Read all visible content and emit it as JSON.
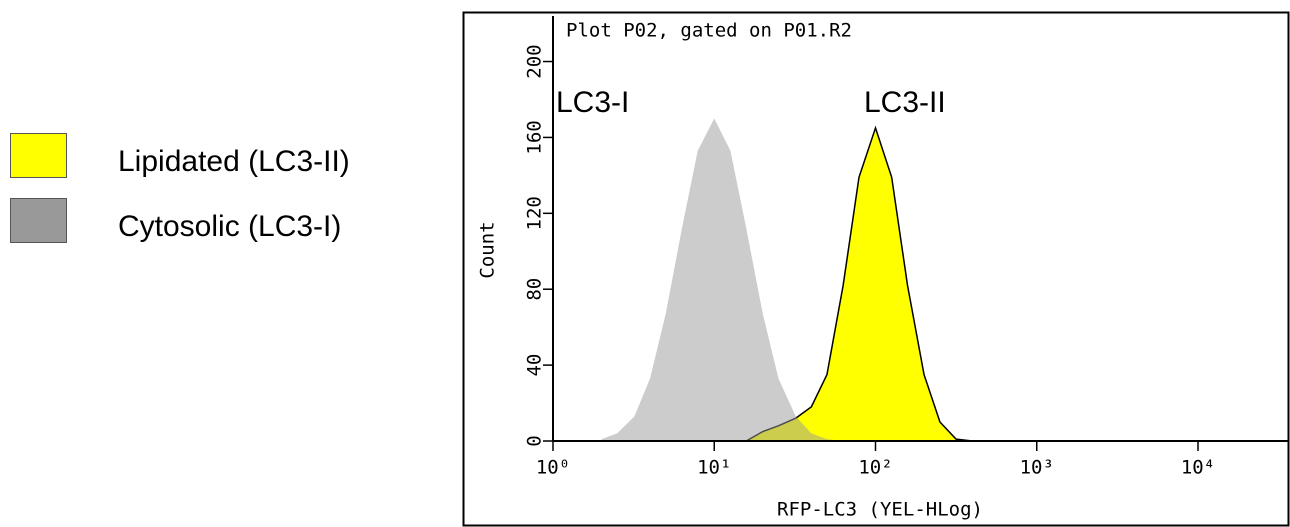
{
  "chart_data": {
    "type": "area",
    "title": "Plot P02, gated on P01.R2",
    "x_label": "RFP-LC3 (YEL-HLog)",
    "y_label": "Count",
    "annotations": [
      "LC3-I",
      "LC3-II"
    ],
    "xlog": true,
    "legend": "left",
    "xlim": [
      1,
      10000
    ],
    "xticks": [
      {
        "value": 1,
        "label": "10⁰"
      },
      {
        "value": 10,
        "label": "10¹"
      },
      {
        "value": 100,
        "label": "10²"
      },
      {
        "value": 1000,
        "label": "10³"
      },
      {
        "value": 10000,
        "label": "10⁴"
      }
    ],
    "ylim": [
      0,
      224
    ],
    "yticks": [
      0,
      40,
      80,
      120,
      160,
      200
    ],
    "series": [
      {
        "name": "Lipidated (LC3-II)",
        "color": "#ffff00",
        "x": [
          15.8,
          20,
          25,
          32,
          40,
          50,
          63,
          79,
          100,
          126,
          158,
          200,
          251,
          316,
          398
        ],
        "values": [
          0,
          5,
          8,
          12,
          18,
          35,
          82,
          139,
          165,
          139,
          82,
          35,
          10,
          1,
          0
        ]
      },
      {
        "name": "Cytosolic (LC3-I)",
        "color": "#999999",
        "x": [
          2,
          2.5,
          3.2,
          4,
          5,
          6.3,
          7.9,
          10,
          12.6,
          15.8,
          20,
          25,
          32,
          40,
          50,
          63
        ],
        "values": [
          1,
          4,
          13,
          33,
          67,
          112,
          153,
          170,
          153,
          112,
          67,
          33,
          13,
          4,
          1,
          0
        ]
      }
    ]
  }
}
